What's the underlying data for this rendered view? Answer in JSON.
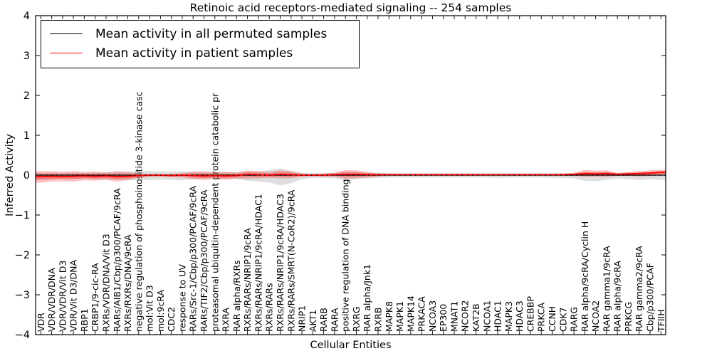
{
  "figure": {
    "title": "Retinoic acid receptors-mediated signaling -- 254 samples",
    "xlabel": "Cellular Entities",
    "ylabel": "Inferred Activity"
  },
  "legend": {
    "items": [
      {
        "label": "Mean activity in all permuted samples",
        "color": "#000000"
      },
      {
        "label": "Mean activity in patient samples",
        "color": "#ff0000"
      }
    ]
  },
  "chart_data": {
    "type": "line",
    "title": "Retinoic acid receptors-mediated signaling -- 254 samples",
    "xlabel": "Cellular Entities",
    "ylabel": "Inferred Activity",
    "ylim": [
      -4,
      4
    ],
    "yticks": [
      4,
      3,
      2,
      1,
      0,
      -1,
      -2,
      -3,
      -4
    ],
    "ytick_labels": [
      "4",
      "3",
      "2",
      "1",
      "0",
      "−1",
      "−2",
      "−3",
      "−4"
    ],
    "legend_position": "upper left",
    "grid": false,
    "colors": {
      "permuted": "#000000",
      "patient": "#ff0000",
      "permuted_band": "#999999",
      "patient_band": "#ff0000"
    },
    "categories": [
      "VDR",
      "VDR/VDR/DNA",
      "VDR/VDR/Vit D3",
      "VDR/Vit D3/DNA",
      "RBP1",
      "CRBP1/9-cic-RA",
      "RXRs/VDR/DNA/Vit D3",
      "RARs/AIB1/Cbp/p300/PCAF/9cRA",
      "RXRs/RXRs/DNA/9cRA",
      "negative regulation of phosphoinositide 3-kinase casc",
      "mol:Vit D3",
      "mol:9cRA",
      "CDC2",
      "response to UV",
      "RARs/Src-1/Cbp/p300/PCAF/9cRA",
      "RARs/TIF2/Cbp/p300/PCAF/9cRA",
      "proteasomal ubiquitin-dependent protein catabolic pr",
      "RXRA",
      "RAR alpha/RXRs",
      "RXRs/RARs/NRIP1/9cRA",
      "RXRs/RARs/NRIP1/9cRA/HDAC1",
      "RXRs/RARs",
      "RXRs/RARs/NRIP1/9cRA/HDAC3",
      "RXRs/RARs/SMRT(N-CoR2)/9cRA",
      "NRIP1",
      "AKT1",
      "RARB",
      "RARA",
      "positive regulation of DNA binding",
      "RXRG",
      "RAR alpha/Jnk1",
      "RXRB",
      "MAPK8",
      "MAPK1",
      "MAPK14",
      "PRKACA",
      "NCOA3",
      "EP300",
      "MNAT1",
      "NCOR2",
      "KAT2B",
      "NCOA1",
      "HDAC1",
      "MAPK3",
      "HDAC3",
      "CREBBP",
      "PRKCA",
      "CCNH",
      "CDK7",
      "RARG",
      "RAR alpha/9cRA/Cyclin H",
      "NCOA2",
      "RAR gamma1/9cRA",
      "RAR alpha/9cRA",
      "PRKCG",
      "RAR gamma2/9cRA",
      "Cbp/p300/PCAF",
      "TFIIH"
    ],
    "series": [
      {
        "name": "Mean activity in all permuted samples",
        "color": "#000000",
        "values": [
          0,
          0,
          0,
          0,
          0,
          0,
          0,
          0,
          0,
          0,
          0,
          0,
          0,
          0,
          0,
          0,
          0,
          0,
          0,
          0,
          0,
          0,
          0,
          0,
          0,
          0,
          0,
          0,
          0,
          0,
          0,
          0,
          0,
          0,
          0,
          0,
          0,
          0,
          0,
          0,
          0,
          0,
          0,
          0,
          0,
          0,
          0,
          0,
          0,
          0,
          0,
          0,
          0,
          0,
          0,
          0,
          0,
          0
        ]
      },
      {
        "name": "Mean activity in patient samples",
        "color": "#ff0000",
        "values": [
          -0.04,
          -0.03,
          -0.04,
          -0.03,
          -0.02,
          -0.03,
          -0.02,
          -0.04,
          -0.03,
          -0.01,
          0,
          0,
          -0.01,
          0,
          -0.01,
          -0.02,
          -0.01,
          -0.02,
          -0.01,
          0.02,
          0.01,
          0,
          0.02,
          0.01,
          0,
          0,
          0,
          0.01,
          0.02,
          0.02,
          0.01,
          0.01,
          0.01,
          0.01,
          0.01,
          0.01,
          0.01,
          0.01,
          0.01,
          0.01,
          0.01,
          0.01,
          0.01,
          0.01,
          0.01,
          0.01,
          0.01,
          0.01,
          0.01,
          0.02,
          0.04,
          0.03,
          0.04,
          0.02,
          0.03,
          0.04,
          0.05,
          0.07
        ]
      }
    ],
    "bands": [
      {
        "name": "permuted samples range",
        "color": "#999999",
        "opacity": 0.32,
        "upper": [
          0.06,
          0.06,
          0.06,
          0.06,
          0.06,
          0.06,
          0.07,
          0.08,
          0.09,
          0.1,
          0.1,
          0.09,
          0.09,
          0.1,
          0.08,
          0.07,
          0.08,
          0.08,
          0.07,
          0.08,
          0.09,
          0.13,
          0.17,
          0.1,
          0.06,
          0.05,
          0.05,
          0.06,
          0.08,
          0.07,
          0.06,
          0.06,
          0.05,
          0.05,
          0.05,
          0.05,
          0.05,
          0.05,
          0.05,
          0.05,
          0.05,
          0.05,
          0.05,
          0.05,
          0.05,
          0.05,
          0.05,
          0.05,
          0.05,
          0.05,
          0.06,
          0.06,
          0.07,
          0.05,
          0.06,
          0.06,
          0.06,
          0.08
        ],
        "lower": [
          -0.1,
          -0.1,
          -0.09,
          -0.09,
          -0.09,
          -0.09,
          -0.1,
          -0.11,
          -0.12,
          -0.13,
          -0.12,
          -0.11,
          -0.12,
          -0.13,
          -0.1,
          -0.09,
          -0.1,
          -0.11,
          -0.09,
          -0.14,
          -0.16,
          -0.18,
          -0.26,
          -0.2,
          -0.1,
          -0.07,
          -0.07,
          -0.08,
          -0.12,
          -0.1,
          -0.08,
          -0.07,
          -0.06,
          -0.06,
          -0.06,
          -0.06,
          -0.06,
          -0.06,
          -0.06,
          -0.06,
          -0.06,
          -0.06,
          -0.07,
          -0.06,
          -0.06,
          -0.06,
          -0.06,
          -0.07,
          -0.07,
          -0.08,
          -0.14,
          -0.15,
          -0.12,
          -0.08,
          -0.1,
          -0.12,
          -0.1,
          -0.12
        ]
      },
      {
        "name": "patient samples range",
        "color": "#ff0000",
        "opacity": 0.24,
        "upper": [
          0.1,
          0.1,
          0.09,
          0.1,
          0.08,
          0.09,
          0.07,
          0.1,
          0.08,
          0.04,
          0.03,
          0.03,
          0.03,
          0.05,
          0.09,
          0.1,
          0.07,
          0.08,
          0.07,
          0.12,
          0.1,
          0.08,
          0.12,
          0.1,
          0.04,
          0.03,
          0.04,
          0.06,
          0.13,
          0.12,
          0.08,
          0.05,
          0.04,
          0.03,
          0.03,
          0.03,
          0.03,
          0.03,
          0.03,
          0.03,
          0.03,
          0.03,
          0.03,
          0.03,
          0.03,
          0.03,
          0.03,
          0.03,
          0.04,
          0.06,
          0.13,
          0.11,
          0.12,
          0.06,
          0.08,
          0.1,
          0.12,
          0.14
        ],
        "lower": [
          -0.19,
          -0.16,
          -0.15,
          -0.16,
          -0.13,
          -0.14,
          -0.12,
          -0.16,
          -0.13,
          -0.07,
          -0.04,
          -0.04,
          -0.05,
          -0.06,
          -0.1,
          -0.12,
          -0.09,
          -0.11,
          -0.09,
          -0.09,
          -0.08,
          -0.07,
          -0.08,
          -0.08,
          -0.04,
          -0.03,
          -0.04,
          -0.04,
          -0.09,
          -0.08,
          -0.06,
          -0.04,
          -0.02,
          -0.02,
          -0.02,
          -0.02,
          -0.02,
          -0.02,
          -0.02,
          -0.02,
          -0.02,
          -0.02,
          -0.02,
          -0.02,
          -0.02,
          -0.02,
          -0.02,
          -0.02,
          -0.02,
          -0.02,
          -0.04,
          -0.04,
          -0.04,
          -0.02,
          -0.02,
          -0.03,
          -0.02,
          0.0
        ]
      }
    ]
  }
}
